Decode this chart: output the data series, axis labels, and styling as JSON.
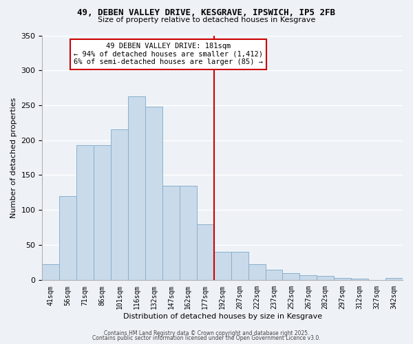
{
  "title": "49, DEBEN VALLEY DRIVE, KESGRAVE, IPSWICH, IP5 2FB",
  "subtitle": "Size of property relative to detached houses in Kesgrave",
  "xlabel": "Distribution of detached houses by size in Kesgrave",
  "ylabel": "Number of detached properties",
  "bar_labels": [
    "41sqm",
    "56sqm",
    "71sqm",
    "86sqm",
    "101sqm",
    "116sqm",
    "132sqm",
    "147sqm",
    "162sqm",
    "177sqm",
    "192sqm",
    "207sqm",
    "222sqm",
    "237sqm",
    "252sqm",
    "267sqm",
    "282sqm",
    "297sqm",
    "312sqm",
    "327sqm",
    "342sqm"
  ],
  "bar_values": [
    22,
    120,
    193,
    193,
    215,
    263,
    248,
    135,
    135,
    79,
    40,
    40,
    22,
    14,
    9,
    6,
    5,
    3,
    2,
    0,
    3
  ],
  "bar_color": "#c9daea",
  "bar_edge_color": "#8ab0cc",
  "vline_color": "#cc0000",
  "annotation_text": "49 DEBEN VALLEY DRIVE: 181sqm\n← 94% of detached houses are smaller (1,412)\n6% of semi-detached houses are larger (85) →",
  "annotation_box_facecolor": "#ffffff",
  "annotation_box_edgecolor": "#cc0000",
  "ylim": [
    0,
    350
  ],
  "yticks": [
    0,
    50,
    100,
    150,
    200,
    250,
    300,
    350
  ],
  "bg_color": "#eef2f7",
  "grid_color": "#ffffff",
  "footer1": "Contains HM Land Registry data © Crown copyright and database right 2025.",
  "footer2": "Contains public sector information licensed under the Open Government Licence v3.0."
}
